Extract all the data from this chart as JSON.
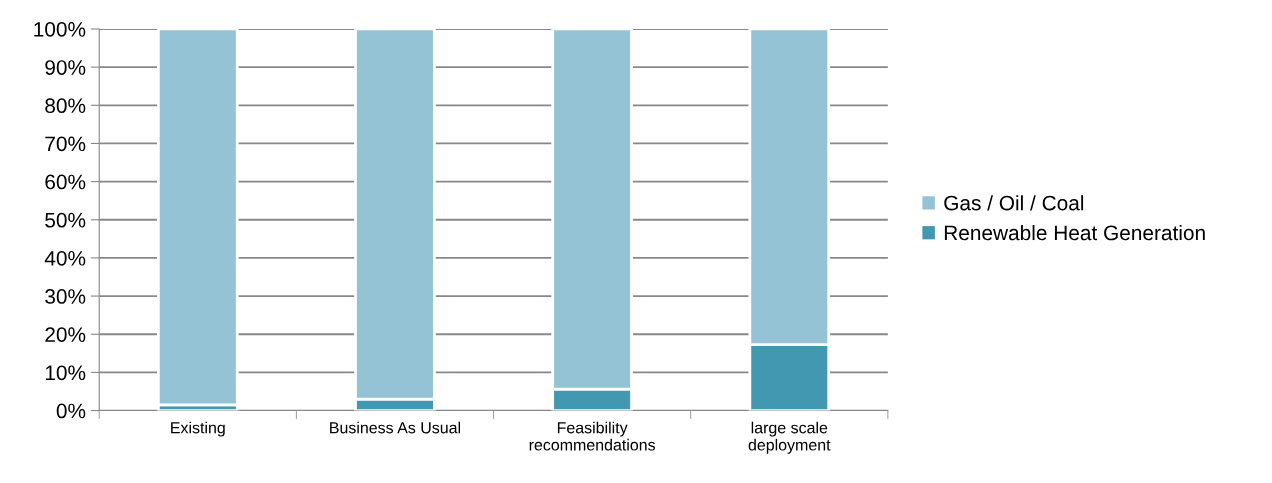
{
  "chart_data": {
    "type": "bar",
    "stacked": true,
    "categories": [
      "Existing",
      "Business As Usual",
      "Feasibility\nrecommendations",
      "large scale\ndeployment"
    ],
    "series": [
      {
        "name": "Renewable Heat Generation",
        "color": "#4298b0",
        "values": [
          1.5,
          3,
          5.6,
          17.3
        ]
      },
      {
        "name": "Gas / Oil / Coal",
        "color": "#94c3d5",
        "values": [
          98.5,
          97,
          94.4,
          82.7
        ]
      }
    ],
    "ylim": [
      0,
      100
    ],
    "yticks": [
      {
        "value": 0,
        "label": "0%"
      },
      {
        "value": 10,
        "label": "10%"
      },
      {
        "value": 20,
        "label": "20%"
      },
      {
        "value": 30,
        "label": "30%"
      },
      {
        "value": 40,
        "label": "40%"
      },
      {
        "value": 50,
        "label": "50%"
      },
      {
        "value": 60,
        "label": "60%"
      },
      {
        "value": 70,
        "label": "70%"
      },
      {
        "value": 80,
        "label": "80%"
      },
      {
        "value": 90,
        "label": "90%"
      },
      {
        "value": 100,
        "label": "100%"
      }
    ],
    "grid": "y",
    "legend": "right"
  }
}
